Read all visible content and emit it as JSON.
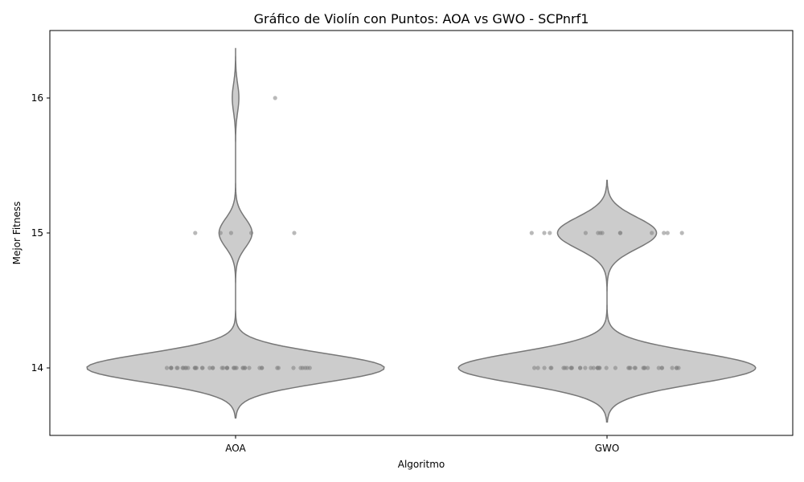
{
  "chart_data": {
    "type": "violin",
    "title": "Gráfico de Violín con Puntos: AOA vs GWO - SCPnrf1",
    "xlabel": "Algoritmo",
    "ylabel": "Mejor Fitness",
    "categories": [
      "AOA",
      "GWO"
    ],
    "ylim": [
      13.5,
      16.5
    ],
    "yticks": [
      14,
      15,
      16
    ],
    "grid": false,
    "violin_fill": "#cccccc",
    "violin_edge": "#777777",
    "point_color": "#808080",
    "series": [
      {
        "category": "AOA",
        "points": [
          14,
          14,
          14,
          14,
          14,
          14,
          14,
          14,
          14,
          14,
          14,
          14,
          14,
          14,
          14,
          14,
          14,
          14,
          14,
          14,
          14,
          14,
          14,
          14,
          14,
          14,
          14,
          14,
          14,
          14,
          14,
          14,
          14,
          14,
          14,
          14,
          14,
          14,
          14,
          14,
          14,
          14,
          14,
          14,
          14,
          15,
          15,
          15,
          15,
          15,
          16
        ],
        "violin_range": [
          13.63,
          16.37
        ]
      },
      {
        "category": "GWO",
        "points": [
          14,
          14,
          14,
          14,
          14,
          14,
          14,
          14,
          14,
          14,
          14,
          14,
          14,
          14,
          14,
          14,
          14,
          14,
          14,
          14,
          14,
          14,
          14,
          14,
          14,
          14,
          14,
          14,
          14,
          14,
          14,
          14,
          14,
          14,
          14,
          14,
          14,
          14,
          14,
          15,
          15,
          15,
          15,
          15,
          15,
          15,
          15,
          15,
          15,
          15,
          15,
          15
        ],
        "violin_range": [
          13.6,
          15.39
        ]
      }
    ]
  }
}
